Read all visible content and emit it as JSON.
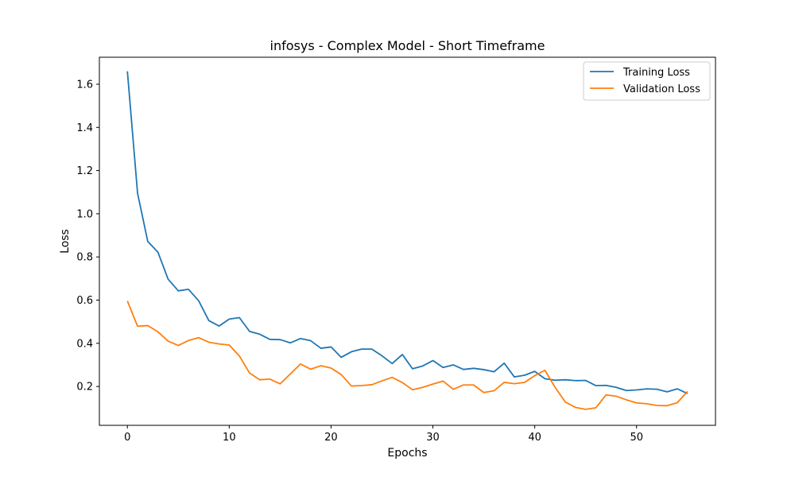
{
  "chart_data": {
    "type": "line",
    "title": "infosys - Complex Model - Short Timeframe",
    "xlabel": "Epochs",
    "ylabel": "Loss",
    "xlim": [
      -2.75,
      57.75
    ],
    "ylim": [
      0.02,
      1.725
    ],
    "xticks": [
      0,
      10,
      20,
      30,
      40,
      50
    ],
    "yticks": [
      0.2,
      0.4,
      0.6,
      0.8,
      1.0,
      1.2,
      1.4,
      1.6
    ],
    "ytick_labels": [
      "0.2",
      "0.4",
      "0.6",
      "0.8",
      "1.0",
      "1.2",
      "1.4",
      "1.6"
    ],
    "grid": false,
    "legend": "upper right",
    "x": [
      0,
      1,
      2,
      3,
      4,
      5,
      6,
      7,
      8,
      9,
      10,
      11,
      12,
      13,
      14,
      15,
      16,
      17,
      18,
      19,
      20,
      21,
      22,
      23,
      24,
      25,
      26,
      27,
      28,
      29,
      30,
      31,
      32,
      33,
      34,
      35,
      36,
      37,
      38,
      39,
      40,
      41,
      42,
      43,
      44,
      45,
      46,
      47,
      48,
      49,
      50,
      51,
      52,
      53,
      54,
      55
    ],
    "series": [
      {
        "name": "Training Loss",
        "color": "#1f77b4",
        "values": [
          1.66,
          1.095,
          0.872,
          0.822,
          0.697,
          0.643,
          0.65,
          0.597,
          0.505,
          0.48,
          0.512,
          0.519,
          0.455,
          0.442,
          0.418,
          0.417,
          0.402,
          0.422,
          0.412,
          0.377,
          0.383,
          0.335,
          0.361,
          0.373,
          0.373,
          0.342,
          0.306,
          0.348,
          0.282,
          0.295,
          0.32,
          0.288,
          0.3,
          0.279,
          0.284,
          0.278,
          0.268,
          0.308,
          0.244,
          0.252,
          0.27,
          0.236,
          0.229,
          0.231,
          0.227,
          0.228,
          0.204,
          0.205,
          0.196,
          0.181,
          0.184,
          0.189,
          0.187,
          0.175,
          0.189,
          0.167
        ]
      },
      {
        "name": "Validation Loss",
        "color": "#ff7f0e",
        "values": [
          0.596,
          0.479,
          0.482,
          0.453,
          0.41,
          0.39,
          0.413,
          0.426,
          0.405,
          0.397,
          0.392,
          0.341,
          0.262,
          0.231,
          0.234,
          0.212,
          0.258,
          0.304,
          0.28,
          0.296,
          0.285,
          0.255,
          0.202,
          0.204,
          0.208,
          0.226,
          0.242,
          0.218,
          0.185,
          0.196,
          0.211,
          0.225,
          0.187,
          0.207,
          0.207,
          0.172,
          0.18,
          0.219,
          0.213,
          0.219,
          0.25,
          0.275,
          0.196,
          0.128,
          0.103,
          0.094,
          0.101,
          0.161,
          0.155,
          0.138,
          0.124,
          0.12,
          0.112,
          0.111,
          0.125,
          0.177
        ]
      }
    ]
  }
}
